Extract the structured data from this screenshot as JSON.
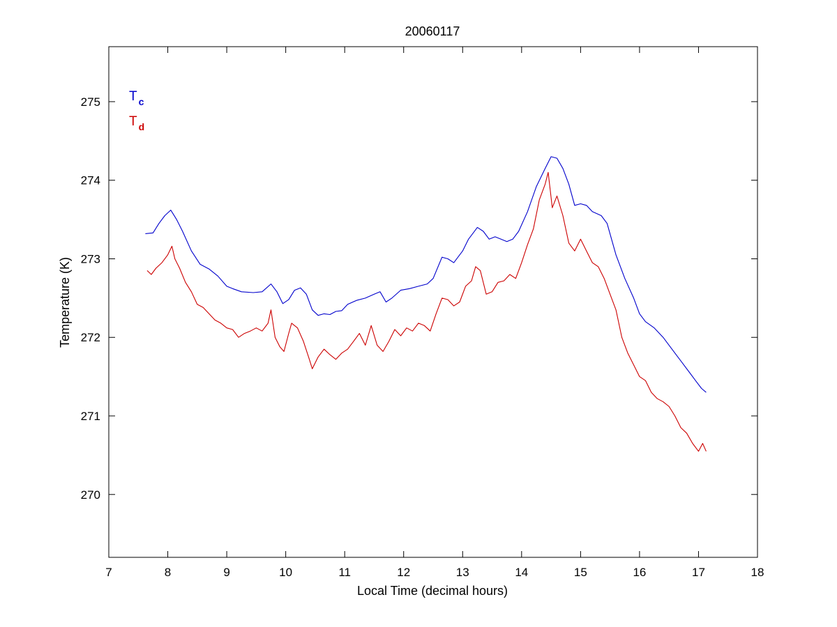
{
  "chart_data": {
    "type": "line",
    "title": "20060117",
    "xlabel": "Local Time (decimal hours)",
    "ylabel": "Temperature (K)",
    "xlim": [
      7,
      18
    ],
    "ylim": [
      269.2,
      275.7
    ],
    "xticks": [
      7,
      8,
      9,
      10,
      11,
      12,
      13,
      14,
      15,
      16,
      17,
      18
    ],
    "yticks": [
      270,
      271,
      272,
      273,
      274,
      275
    ],
    "grid": false,
    "legend_position": "top-left",
    "legend": [
      {
        "main": "T",
        "sub": "c",
        "color": "#0000cc"
      },
      {
        "main": "T",
        "sub": "d",
        "color": "#cc0000"
      }
    ],
    "series": [
      {
        "name": "Tc",
        "color": "#0000cc",
        "points": [
          [
            7.62,
            273.32
          ],
          [
            7.75,
            273.33
          ],
          [
            7.85,
            273.45
          ],
          [
            7.95,
            273.55
          ],
          [
            8.05,
            273.62
          ],
          [
            8.15,
            273.5
          ],
          [
            8.25,
            273.35
          ],
          [
            8.4,
            273.1
          ],
          [
            8.55,
            272.93
          ],
          [
            8.7,
            272.87
          ],
          [
            8.85,
            272.78
          ],
          [
            9.0,
            272.65
          ],
          [
            9.1,
            272.62
          ],
          [
            9.25,
            272.58
          ],
          [
            9.45,
            272.57
          ],
          [
            9.6,
            272.58
          ],
          [
            9.75,
            272.68
          ],
          [
            9.85,
            272.58
          ],
          [
            9.95,
            272.43
          ],
          [
            10.05,
            272.48
          ],
          [
            10.15,
            272.6
          ],
          [
            10.25,
            272.63
          ],
          [
            10.35,
            272.55
          ],
          [
            10.45,
            272.35
          ],
          [
            10.55,
            272.28
          ],
          [
            10.65,
            272.3
          ],
          [
            10.75,
            272.29
          ],
          [
            10.85,
            272.33
          ],
          [
            10.95,
            272.34
          ],
          [
            11.05,
            272.42
          ],
          [
            11.2,
            272.47
          ],
          [
            11.35,
            272.5
          ],
          [
            11.5,
            272.55
          ],
          [
            11.6,
            272.58
          ],
          [
            11.7,
            272.45
          ],
          [
            11.8,
            272.5
          ],
          [
            11.95,
            272.6
          ],
          [
            12.1,
            272.62
          ],
          [
            12.25,
            272.65
          ],
          [
            12.4,
            272.68
          ],
          [
            12.5,
            272.75
          ],
          [
            12.65,
            273.02
          ],
          [
            12.75,
            273.0
          ],
          [
            12.85,
            272.95
          ],
          [
            13.0,
            273.1
          ],
          [
            13.1,
            273.25
          ],
          [
            13.25,
            273.4
          ],
          [
            13.35,
            273.35
          ],
          [
            13.45,
            273.25
          ],
          [
            13.55,
            273.28
          ],
          [
            13.65,
            273.25
          ],
          [
            13.75,
            273.22
          ],
          [
            13.85,
            273.25
          ],
          [
            13.95,
            273.35
          ],
          [
            14.1,
            273.6
          ],
          [
            14.25,
            273.92
          ],
          [
            14.4,
            274.15
          ],
          [
            14.5,
            274.3
          ],
          [
            14.6,
            274.28
          ],
          [
            14.7,
            274.15
          ],
          [
            14.8,
            273.95
          ],
          [
            14.9,
            273.68
          ],
          [
            15.0,
            273.7
          ],
          [
            15.1,
            273.68
          ],
          [
            15.2,
            273.6
          ],
          [
            15.35,
            273.55
          ],
          [
            15.45,
            273.45
          ],
          [
            15.6,
            273.05
          ],
          [
            15.75,
            272.75
          ],
          [
            15.9,
            272.5
          ],
          [
            16.0,
            272.3
          ],
          [
            16.1,
            272.2
          ],
          [
            16.25,
            272.12
          ],
          [
            16.4,
            272.0
          ],
          [
            16.55,
            271.85
          ],
          [
            16.7,
            271.7
          ],
          [
            16.85,
            271.55
          ],
          [
            16.95,
            271.45
          ],
          [
            17.05,
            271.35
          ],
          [
            17.13,
            271.3
          ]
        ]
      },
      {
        "name": "Td",
        "color": "#cc0000",
        "points": [
          [
            7.65,
            272.85
          ],
          [
            7.72,
            272.8
          ],
          [
            7.8,
            272.88
          ],
          [
            7.9,
            272.95
          ],
          [
            8.0,
            273.05
          ],
          [
            8.07,
            273.16
          ],
          [
            8.12,
            273.0
          ],
          [
            8.2,
            272.88
          ],
          [
            8.3,
            272.7
          ],
          [
            8.4,
            272.58
          ],
          [
            8.5,
            272.42
          ],
          [
            8.6,
            272.38
          ],
          [
            8.7,
            272.3
          ],
          [
            8.8,
            272.22
          ],
          [
            8.9,
            272.18
          ],
          [
            9.0,
            272.12
          ],
          [
            9.1,
            272.1
          ],
          [
            9.2,
            272.0
          ],
          [
            9.3,
            272.05
          ],
          [
            9.4,
            272.08
          ],
          [
            9.5,
            272.12
          ],
          [
            9.6,
            272.08
          ],
          [
            9.7,
            272.18
          ],
          [
            9.75,
            272.35
          ],
          [
            9.82,
            272.0
          ],
          [
            9.9,
            271.88
          ],
          [
            9.97,
            271.82
          ],
          [
            10.05,
            272.05
          ],
          [
            10.1,
            272.18
          ],
          [
            10.2,
            272.12
          ],
          [
            10.3,
            271.95
          ],
          [
            10.4,
            271.72
          ],
          [
            10.45,
            271.6
          ],
          [
            10.55,
            271.75
          ],
          [
            10.65,
            271.85
          ],
          [
            10.75,
            271.78
          ],
          [
            10.85,
            271.72
          ],
          [
            10.95,
            271.8
          ],
          [
            11.05,
            271.85
          ],
          [
            11.15,
            271.95
          ],
          [
            11.25,
            272.05
          ],
          [
            11.35,
            271.9
          ],
          [
            11.45,
            272.15
          ],
          [
            11.55,
            271.9
          ],
          [
            11.65,
            271.82
          ],
          [
            11.75,
            271.95
          ],
          [
            11.85,
            272.1
          ],
          [
            11.95,
            272.02
          ],
          [
            12.05,
            272.12
          ],
          [
            12.15,
            272.08
          ],
          [
            12.25,
            272.18
          ],
          [
            12.35,
            272.15
          ],
          [
            12.45,
            272.08
          ],
          [
            12.55,
            272.3
          ],
          [
            12.65,
            272.5
          ],
          [
            12.75,
            272.48
          ],
          [
            12.85,
            272.4
          ],
          [
            12.95,
            272.45
          ],
          [
            13.05,
            272.65
          ],
          [
            13.15,
            272.72
          ],
          [
            13.22,
            272.9
          ],
          [
            13.3,
            272.85
          ],
          [
            13.4,
            272.55
          ],
          [
            13.5,
            272.58
          ],
          [
            13.6,
            272.7
          ],
          [
            13.7,
            272.72
          ],
          [
            13.8,
            272.8
          ],
          [
            13.9,
            272.75
          ],
          [
            14.0,
            272.95
          ],
          [
            14.1,
            273.18
          ],
          [
            14.2,
            273.38
          ],
          [
            14.3,
            273.75
          ],
          [
            14.4,
            273.95
          ],
          [
            14.45,
            274.1
          ],
          [
            14.52,
            273.65
          ],
          [
            14.6,
            273.8
          ],
          [
            14.7,
            273.55
          ],
          [
            14.8,
            273.2
          ],
          [
            14.9,
            273.1
          ],
          [
            15.0,
            273.25
          ],
          [
            15.1,
            273.1
          ],
          [
            15.2,
            272.95
          ],
          [
            15.3,
            272.9
          ],
          [
            15.4,
            272.75
          ],
          [
            15.5,
            272.55
          ],
          [
            15.6,
            272.35
          ],
          [
            15.7,
            272.0
          ],
          [
            15.8,
            271.8
          ],
          [
            15.9,
            271.65
          ],
          [
            16.0,
            271.5
          ],
          [
            16.1,
            271.45
          ],
          [
            16.2,
            271.3
          ],
          [
            16.3,
            271.22
          ],
          [
            16.4,
            271.18
          ],
          [
            16.5,
            271.12
          ],
          [
            16.6,
            271.0
          ],
          [
            16.7,
            270.85
          ],
          [
            16.8,
            270.78
          ],
          [
            16.9,
            270.65
          ],
          [
            17.0,
            270.55
          ],
          [
            17.07,
            270.65
          ],
          [
            17.13,
            270.55
          ]
        ]
      }
    ]
  }
}
